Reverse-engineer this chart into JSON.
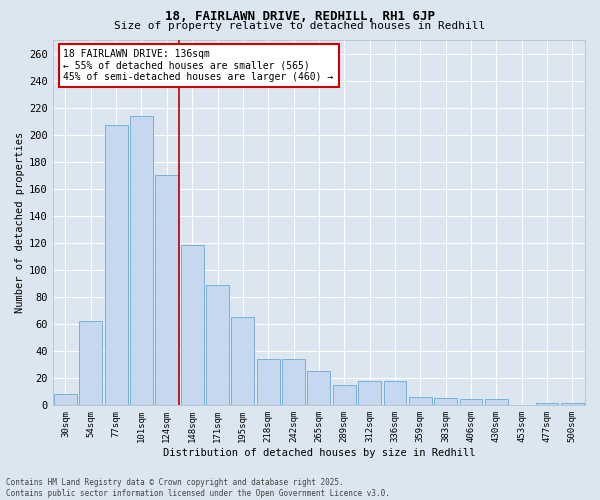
{
  "title_line1": "18, FAIRLAWN DRIVE, REDHILL, RH1 6JP",
  "title_line2": "Size of property relative to detached houses in Redhill",
  "xlabel": "Distribution of detached houses by size in Redhill",
  "ylabel": "Number of detached properties",
  "categories": [
    "30sqm",
    "54sqm",
    "77sqm",
    "101sqm",
    "124sqm",
    "148sqm",
    "171sqm",
    "195sqm",
    "218sqm",
    "242sqm",
    "265sqm",
    "289sqm",
    "312sqm",
    "336sqm",
    "359sqm",
    "383sqm",
    "406sqm",
    "430sqm",
    "453sqm",
    "477sqm",
    "500sqm"
  ],
  "values": [
    8,
    62,
    207,
    214,
    170,
    118,
    89,
    65,
    34,
    34,
    25,
    15,
    18,
    18,
    6,
    5,
    4,
    4,
    0,
    1,
    1
  ],
  "bar_color": "#c5d8ef",
  "bar_edge_color": "#7aafd4",
  "background_color": "#dce6f1",
  "grid_color": "#ffffff",
  "vline_color": "#bb0000",
  "vline_pos": 4.5,
  "annotation_text": "18 FAIRLAWN DRIVE: 136sqm\n← 55% of detached houses are smaller (565)\n45% of semi-detached houses are larger (460) →",
  "annotation_box_edge_color": "#cc0000",
  "footer_text": "Contains HM Land Registry data © Crown copyright and database right 2025.\nContains public sector information licensed under the Open Government Licence v3.0.",
  "ylim": [
    0,
    270
  ],
  "yticks": [
    0,
    20,
    40,
    60,
    80,
    100,
    120,
    140,
    160,
    180,
    200,
    220,
    240,
    260
  ]
}
